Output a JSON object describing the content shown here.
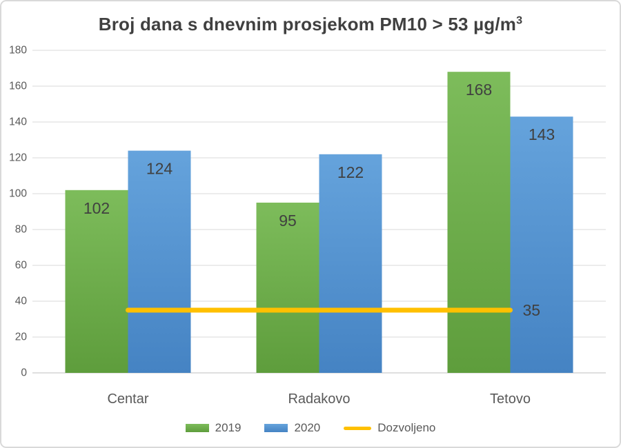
{
  "window": {
    "background_color": "#FFFFFF",
    "border_color": "#D9D9D9"
  },
  "chart_data": {
    "type": "bar",
    "title": "Broj dana s dnevnim prosjekom PM10 > 53 µg/m³",
    "title_main": "Broj dana s dnevnim prosjekom PM10 > 53 µg/m",
    "title_superscript": "3",
    "categories": [
      "Centar",
      "Radakovo",
      "Tetovo"
    ],
    "series": [
      {
        "name": "2019",
        "render": "bar",
        "color": "#70AD47",
        "color_top": "#7DBC5B",
        "color_bottom": "#5E9D3C",
        "values": [
          102,
          95,
          168
        ],
        "data_labels": [
          "102",
          "95",
          "168"
        ]
      },
      {
        "name": "2020",
        "render": "bar",
        "color": "#5B9BD5",
        "color_top": "#65A3DC",
        "color_bottom": "#4583C3",
        "values": [
          124,
          122,
          143
        ],
        "data_labels": [
          "124",
          "122",
          "143"
        ]
      },
      {
        "name": "Dozvoljeno",
        "render": "line",
        "color": "#FFC000",
        "values": [
          35,
          35,
          35
        ],
        "data_label": "35"
      }
    ],
    "y_axis": {
      "min": 0,
      "max": 180,
      "step": 20,
      "tick_labels": [
        "0",
        "20",
        "40",
        "60",
        "80",
        "100",
        "120",
        "140",
        "160",
        "180"
      ]
    },
    "x_axis": {
      "tick_labels": [
        "Centar",
        "Radakovo",
        "Tetovo"
      ]
    },
    "grid": true,
    "legend_position": "bottom",
    "style": {
      "gridline_color": "#D9D9D9",
      "axis_line_color": "#BFBFBF",
      "tick_label_color": "#595959",
      "category_label_color": "#595959",
      "data_label_color": "#404040",
      "title_color": "#404040",
      "legend_text_color": "#595959"
    }
  }
}
